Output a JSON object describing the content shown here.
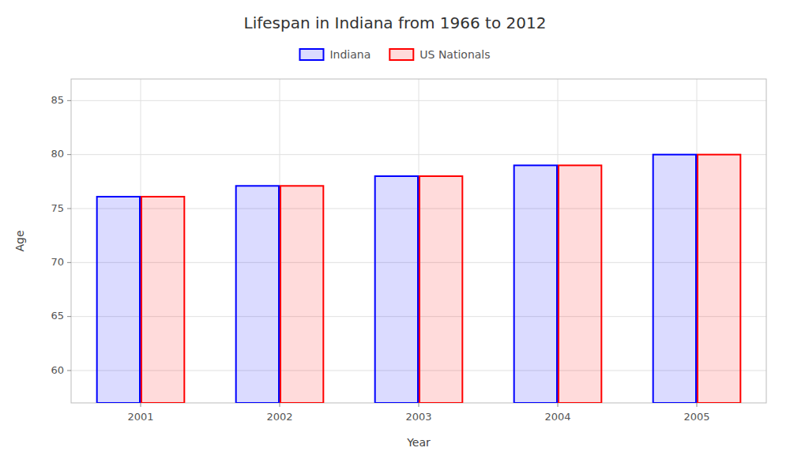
{
  "chart_data": {
    "type": "bar",
    "title": "Lifespan in Indiana from 1966 to 2012",
    "x_label": "Year",
    "y_label": "Age",
    "categories": [
      "2001",
      "2002",
      "2003",
      "2004",
      "2005"
    ],
    "series": [
      {
        "name": "Indiana",
        "color": "#0000ff",
        "values": [
          76.1,
          77.1,
          78.0,
          79.0,
          80.0
        ]
      },
      {
        "name": "US Nationals",
        "color": "#ff0000",
        "values": [
          76.1,
          77.1,
          78.0,
          79.0,
          80.0
        ]
      }
    ],
    "ylim": [
      57,
      87
    ],
    "yticks": [
      60,
      65,
      70,
      75,
      80,
      85
    ],
    "grid": true,
    "legend": "top"
  }
}
